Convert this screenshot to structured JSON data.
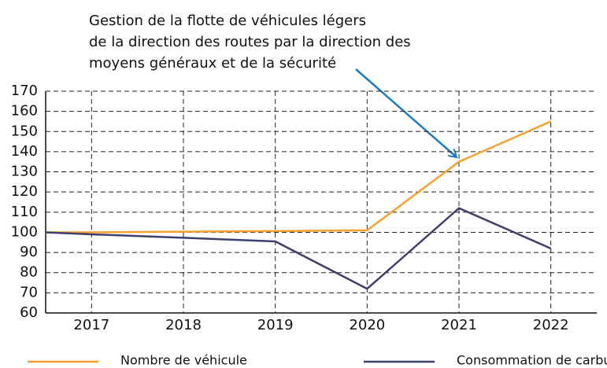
{
  "chart_data": {
    "type": "line",
    "annotation": [
      "Gestion de la flotte de véhicules légers",
      "de la direction des routes par la direction des",
      "moyens généraux et de la sécurité"
    ],
    "x": [
      2016.5,
      2017,
      2018,
      2019,
      2020,
      2021,
      2022
    ],
    "series": [
      {
        "name": "Nombre de véhicule",
        "color": "#f5a030",
        "values": [
          100,
          100,
          100.3,
          100.6,
          101,
          135,
          155
        ]
      },
      {
        "name": "Consommation de carburant",
        "color": "#3d3f6e",
        "values": [
          100,
          99,
          97.3,
          95.5,
          72,
          112,
          92
        ]
      }
    ],
    "xlim": [
      2016.5,
      2022.5
    ],
    "xticks": [
      2017,
      2018,
      2019,
      2020,
      2021,
      2022
    ],
    "ylim": [
      60,
      170
    ],
    "yticks": [
      60,
      70,
      80,
      90,
      100,
      110,
      120,
      130,
      140,
      150,
      160,
      170
    ],
    "grid": true
  }
}
